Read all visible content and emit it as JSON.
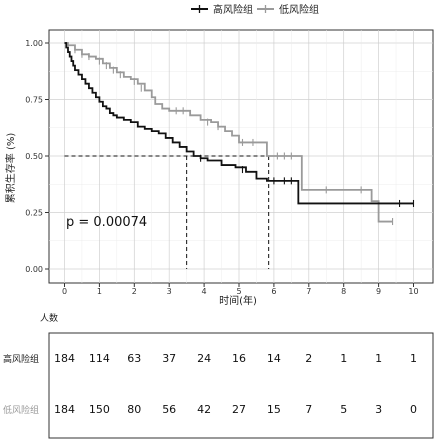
{
  "chart_data": {
    "type": "line",
    "subtype": "kaplan-meier",
    "xlabel": "时间(年)",
    "ylabel": "累积生存率 (%)",
    "xlim": [
      0,
      10
    ],
    "ylim": [
      0,
      1
    ],
    "x_ticks": [
      "0",
      "1",
      "2",
      "3",
      "4",
      "5",
      "6",
      "7",
      "8",
      "9",
      "10"
    ],
    "y_ticks": [
      "0.00",
      "0.25",
      "0.50",
      "0.75",
      "1.00"
    ],
    "legend_position": "top",
    "grid": true,
    "annotation": "p = 0.00074",
    "median_survival_years": [
      3.5,
      5.85
    ],
    "series": [
      {
        "name": "高风险组",
        "color": "#111111",
        "points": [
          [
            0,
            1.0
          ],
          [
            0.05,
            0.98
          ],
          [
            0.1,
            0.96
          ],
          [
            0.15,
            0.94
          ],
          [
            0.2,
            0.92
          ],
          [
            0.25,
            0.9
          ],
          [
            0.3,
            0.88
          ],
          [
            0.4,
            0.86
          ],
          [
            0.5,
            0.84
          ],
          [
            0.6,
            0.82
          ],
          [
            0.7,
            0.8
          ],
          [
            0.8,
            0.78
          ],
          [
            0.9,
            0.76
          ],
          [
            1.0,
            0.74
          ],
          [
            1.1,
            0.72
          ],
          [
            1.2,
            0.71
          ],
          [
            1.3,
            0.69
          ],
          [
            1.4,
            0.68
          ],
          [
            1.5,
            0.67
          ],
          [
            1.7,
            0.66
          ],
          [
            1.9,
            0.65
          ],
          [
            2.1,
            0.63
          ],
          [
            2.3,
            0.62
          ],
          [
            2.5,
            0.61
          ],
          [
            2.7,
            0.6
          ],
          [
            2.9,
            0.58
          ],
          [
            3.1,
            0.56
          ],
          [
            3.3,
            0.54
          ],
          [
            3.5,
            0.52
          ],
          [
            3.7,
            0.5
          ],
          [
            3.9,
            0.49
          ],
          [
            4.1,
            0.48
          ],
          [
            4.5,
            0.46
          ],
          [
            4.9,
            0.45
          ],
          [
            5.2,
            0.43
          ],
          [
            5.5,
            0.4
          ],
          [
            5.8,
            0.39
          ],
          [
            6.3,
            0.39
          ],
          [
            6.7,
            0.38
          ],
          [
            6.7,
            0.29
          ],
          [
            10.0,
            0.29
          ]
        ],
        "censor": [
          [
            3.9,
            0.49
          ],
          [
            5.1,
            0.44
          ],
          [
            6.0,
            0.39
          ],
          [
            6.3,
            0.39
          ],
          [
            6.5,
            0.39
          ],
          [
            9.6,
            0.29
          ],
          [
            10.0,
            0.29
          ]
        ]
      },
      {
        "name": "低风险组",
        "color": "#9a9a9a",
        "points": [
          [
            0,
            1.0
          ],
          [
            0.1,
            0.99
          ],
          [
            0.3,
            0.97
          ],
          [
            0.5,
            0.95
          ],
          [
            0.7,
            0.94
          ],
          [
            0.9,
            0.93
          ],
          [
            1.1,
            0.91
          ],
          [
            1.3,
            0.89
          ],
          [
            1.5,
            0.87
          ],
          [
            1.7,
            0.85
          ],
          [
            1.9,
            0.84
          ],
          [
            2.1,
            0.82
          ],
          [
            2.3,
            0.79
          ],
          [
            2.5,
            0.76
          ],
          [
            2.6,
            0.73
          ],
          [
            2.8,
            0.71
          ],
          [
            3.0,
            0.7
          ],
          [
            3.5,
            0.7
          ],
          [
            3.6,
            0.68
          ],
          [
            3.9,
            0.66
          ],
          [
            4.2,
            0.65
          ],
          [
            4.4,
            0.63
          ],
          [
            4.6,
            0.61
          ],
          [
            4.8,
            0.59
          ],
          [
            5.0,
            0.56
          ],
          [
            5.8,
            0.5
          ],
          [
            6.8,
            0.5
          ],
          [
            6.8,
            0.35
          ],
          [
            8.8,
            0.35
          ],
          [
            8.8,
            0.3
          ],
          [
            9.0,
            0.3
          ],
          [
            9.0,
            0.21
          ],
          [
            9.4,
            0.21
          ]
        ],
        "censor": [
          [
            0.3,
            0.97
          ],
          [
            0.5,
            0.95
          ],
          [
            0.7,
            0.94
          ],
          [
            1.0,
            0.92
          ],
          [
            1.2,
            0.9
          ],
          [
            1.4,
            0.88
          ],
          [
            1.6,
            0.86
          ],
          [
            2.0,
            0.83
          ],
          [
            2.2,
            0.8
          ],
          [
            3.2,
            0.7
          ],
          [
            3.4,
            0.7
          ],
          [
            4.1,
            0.65
          ],
          [
            4.4,
            0.63
          ],
          [
            5.1,
            0.56
          ],
          [
            5.4,
            0.56
          ],
          [
            6.1,
            0.5
          ],
          [
            6.3,
            0.5
          ],
          [
            6.5,
            0.5
          ],
          [
            7.5,
            0.35
          ],
          [
            8.5,
            0.35
          ],
          [
            9.4,
            0.21
          ]
        ]
      }
    ]
  },
  "risk_table": {
    "title": "人数",
    "rows": [
      {
        "label": "高风险组",
        "values": [
          "184",
          "114",
          "63",
          "37",
          "24",
          "16",
          "14",
          "2",
          "1",
          "1",
          "1"
        ]
      },
      {
        "label": "低风险组",
        "values": [
          "184",
          "150",
          "80",
          "56",
          "42",
          "27",
          "15",
          "7",
          "5",
          "3",
          "0"
        ]
      }
    ]
  }
}
